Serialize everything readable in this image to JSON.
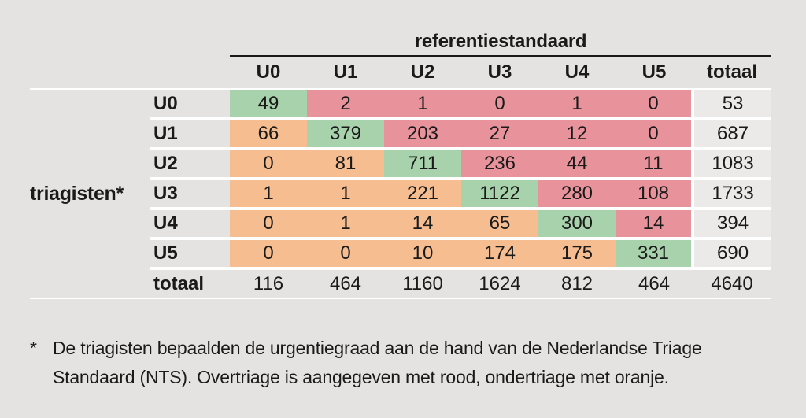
{
  "table": {
    "ref_header": "referentiestandaard",
    "row_axis_label": "triagisten*",
    "col_headers": [
      "U0",
      "U1",
      "U2",
      "U3",
      "U4",
      "U5",
      "totaal"
    ],
    "rows": [
      {
        "label": "U0",
        "cells": [
          {
            "v": "49",
            "t": "match"
          },
          {
            "v": "2",
            "t": "over"
          },
          {
            "v": "1",
            "t": "over"
          },
          {
            "v": "0",
            "t": "over"
          },
          {
            "v": "1",
            "t": "over"
          },
          {
            "v": "0",
            "t": "over"
          }
        ],
        "total": "53"
      },
      {
        "label": "U1",
        "cells": [
          {
            "v": "66",
            "t": "under"
          },
          {
            "v": "379",
            "t": "match"
          },
          {
            "v": "203",
            "t": "over"
          },
          {
            "v": "27",
            "t": "over"
          },
          {
            "v": "12",
            "t": "over"
          },
          {
            "v": "0",
            "t": "over"
          }
        ],
        "total": "687"
      },
      {
        "label": "U2",
        "cells": [
          {
            "v": "0",
            "t": "under"
          },
          {
            "v": "81",
            "t": "under"
          },
          {
            "v": "711",
            "t": "match"
          },
          {
            "v": "236",
            "t": "over"
          },
          {
            "v": "44",
            "t": "over"
          },
          {
            "v": "11",
            "t": "over"
          }
        ],
        "total": "1083"
      },
      {
        "label": "U3",
        "cells": [
          {
            "v": "1",
            "t": "under"
          },
          {
            "v": "1",
            "t": "under"
          },
          {
            "v": "221",
            "t": "under"
          },
          {
            "v": "1122",
            "t": "match"
          },
          {
            "v": "280",
            "t": "over"
          },
          {
            "v": "108",
            "t": "over"
          }
        ],
        "total": "1733"
      },
      {
        "label": "U4",
        "cells": [
          {
            "v": "0",
            "t": "under"
          },
          {
            "v": "1",
            "t": "under"
          },
          {
            "v": "14",
            "t": "under"
          },
          {
            "v": "65",
            "t": "under"
          },
          {
            "v": "300",
            "t": "match"
          },
          {
            "v": "14",
            "t": "over"
          }
        ],
        "total": "394"
      },
      {
        "label": "U5",
        "cells": [
          {
            "v": "0",
            "t": "under"
          },
          {
            "v": "0",
            "t": "under"
          },
          {
            "v": "10",
            "t": "under"
          },
          {
            "v": "174",
            "t": "under"
          },
          {
            "v": "175",
            "t": "under"
          },
          {
            "v": "331",
            "t": "match"
          }
        ],
        "total": "690"
      }
    ],
    "totals": {
      "label": "totaal",
      "values": [
        "116",
        "464",
        "1160",
        "1624",
        "812",
        "464"
      ],
      "grand": "4640"
    }
  },
  "footnote": {
    "marker": "*",
    "line1": "De triagisten bepaalden de urgentiegraad aan de hand van de Nederlandse Triage",
    "line2": "Standaard (NTS). Overtriage is aangegeven met rood, ondertriage met oranje."
  },
  "colors": {
    "page": "#e4e3e1",
    "match": "#a8d2ab",
    "over": "#e8939c",
    "under": "#f5bd90",
    "sum": "#ebeae8",
    "ink": "#1a1a1a",
    "sep": "#ffffff"
  },
  "chart_data": {
    "type": "heatmap",
    "title": "referentiestandaard",
    "row_axis": "triagisten*",
    "row_labels": [
      "U0",
      "U1",
      "U2",
      "U3",
      "U4",
      "U5"
    ],
    "col_labels": [
      "U0",
      "U1",
      "U2",
      "U3",
      "U4",
      "U5"
    ],
    "matrix": [
      [
        49,
        2,
        1,
        0,
        1,
        0
      ],
      [
        66,
        379,
        203,
        27,
        12,
        0
      ],
      [
        0,
        81,
        711,
        236,
        44,
        11
      ],
      [
        1,
        1,
        221,
        1122,
        280,
        108
      ],
      [
        0,
        1,
        14,
        65,
        300,
        14
      ],
      [
        0,
        0,
        10,
        174,
        175,
        331
      ]
    ],
    "row_totals": [
      53,
      687,
      1083,
      1733,
      394,
      690
    ],
    "col_totals": [
      116,
      464,
      1160,
      1624,
      812,
      464
    ],
    "grand_total": 4640,
    "legend": {
      "diagonal": "groen (match)",
      "overtriage": "rood",
      "ondertriage": "oranje"
    }
  }
}
